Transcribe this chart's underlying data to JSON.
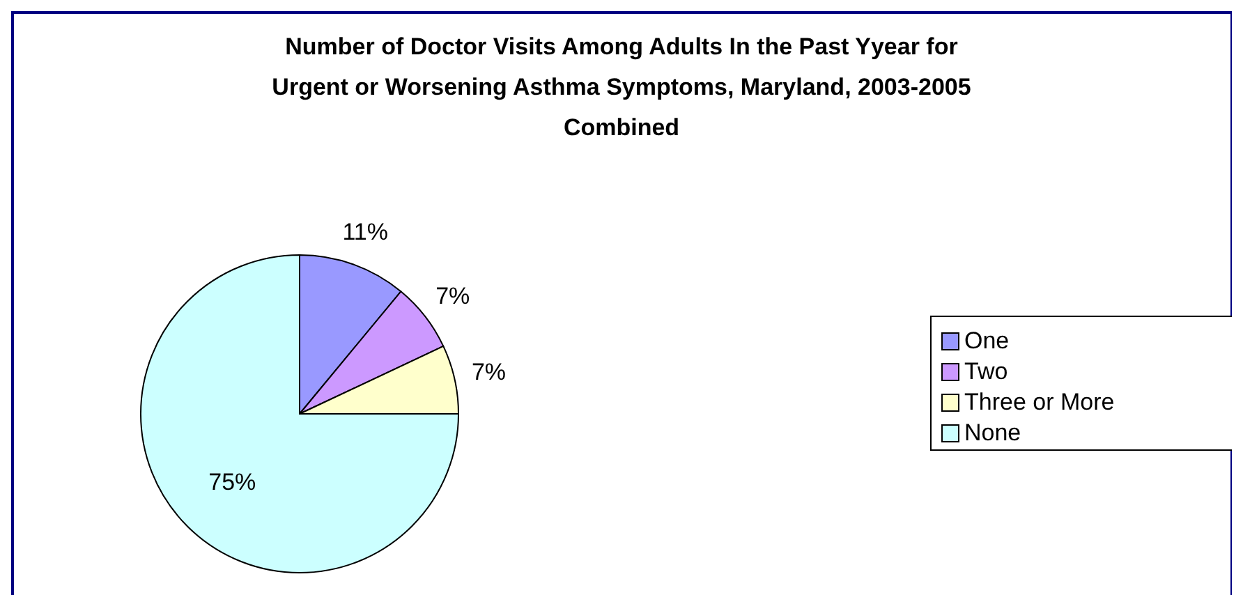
{
  "chart_data": {
    "type": "pie",
    "title": "Number of Doctor Visits Among Adults In the Past Yyear for Urgent or Worsening Asthma Symptoms, Maryland, 2003-2005 Combined",
    "categories": [
      "One",
      "Two",
      "Three or More",
      "None"
    ],
    "values": [
      11,
      7,
      7,
      75
    ],
    "value_labels": [
      "11%",
      "7%",
      "7%",
      "75%"
    ],
    "colors": [
      "#9999ff",
      "#cc99ff",
      "#ffffcc",
      "#ccffff"
    ],
    "legend": "right"
  }
}
